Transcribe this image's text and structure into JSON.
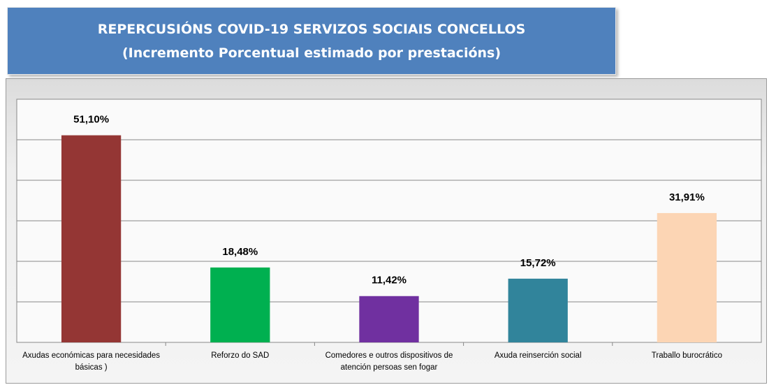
{
  "chart_data": {
    "type": "bar",
    "title": "REPERCUSIÓNS COVID-19 SERVIZOS SOCIAIS CONCELLOS",
    "subtitle": "(Incremento Porcentual estimado por prestacións)",
    "categories": [
      "Axudas económicas para necesidades básicas )",
      "Reforzo do SAD",
      "Comedores e outros dispositivos de atención persoas sen fogar",
      "Axuda reinserción social",
      "Traballo burocrático"
    ],
    "values": [
      51.1,
      18.48,
      11.42,
      15.72,
      31.91
    ],
    "value_labels": [
      "51,10%",
      "18,48%",
      "11,42%",
      "15,72%",
      "31,91%"
    ],
    "colors": [
      "#943634",
      "#00b050",
      "#7030a0",
      "#31849b",
      "#fcd5b4"
    ],
    "ylim": [
      0,
      60
    ],
    "yticks": [
      0,
      10,
      20,
      30,
      40,
      50,
      60
    ],
    "grid": true
  }
}
